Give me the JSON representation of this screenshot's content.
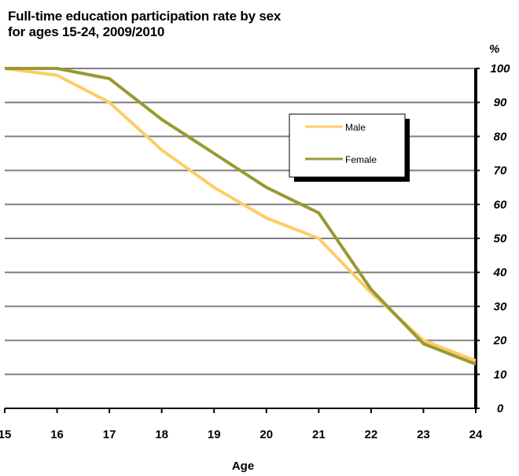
{
  "chart_data": {
    "type": "line",
    "title_line1": "Full-time education participation rate by sex",
    "title_line2": "for ages 15-24, 2009/2010",
    "xlabel": "Age",
    "ylabel": "%",
    "x": [
      15,
      16,
      17,
      18,
      19,
      20,
      21,
      22,
      23,
      24
    ],
    "x_tick_labels": [
      "15",
      "16",
      "17",
      "18",
      "19",
      "20",
      "21",
      "22",
      "23",
      "24"
    ],
    "ylim": [
      0,
      100
    ],
    "y_ticks": [
      0,
      10,
      20,
      30,
      40,
      50,
      60,
      70,
      80,
      90,
      100
    ],
    "y_tick_labels": [
      "0",
      "10",
      "20",
      "30",
      "40",
      "50",
      "60",
      "70",
      "80",
      "90",
      "100"
    ],
    "grid": true,
    "y_axis_side": "right",
    "legend_position": "top-right",
    "series": [
      {
        "name": "Male",
        "color": "#FFCC66",
        "values": [
          100,
          98,
          90,
          76,
          65,
          56,
          50,
          34,
          20,
          14
        ]
      },
      {
        "name": "Female",
        "color": "#999933",
        "values": [
          100,
          100,
          97,
          85,
          75,
          65,
          57.5,
          35,
          19,
          13
        ]
      }
    ]
  }
}
